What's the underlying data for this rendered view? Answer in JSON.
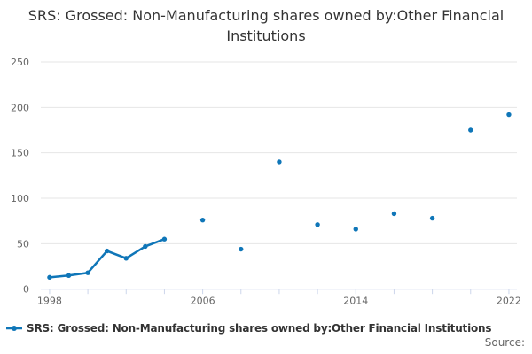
{
  "title": "SRS: Grossed: Non-Manufacturing shares owned by:Other Financial Institutions",
  "legend": {
    "label": "SRS: Grossed: Non-Manufacturing shares owned by:Other Financial Institutions",
    "marker": "line-with-dot-icon"
  },
  "footer": {
    "source_label": "Source:"
  },
  "colors": {
    "series": "#0f76b8",
    "grid": "#e6e6e6",
    "axis": "#ccd6eb",
    "tick_text": "#666666",
    "title_text": "#333333",
    "legend_text": "#333333",
    "source_text": "#666666",
    "background": "#ffffff"
  },
  "chart_data": {
    "type": "line",
    "title": "SRS: Grossed: Non-Manufacturing shares owned by:Other Financial Institutions",
    "xlabel": "",
    "ylabel": "",
    "xlim": [
      1997.54,
      2022.42
    ],
    "ylim": [
      0,
      250
    ],
    "yticks": [
      0,
      50,
      100,
      150,
      200,
      250
    ],
    "xticks": [
      1998,
      2000,
      2002,
      2004,
      2006,
      2008,
      2010,
      2012,
      2014,
      2016,
      2018,
      2020,
      2022
    ],
    "xtick_labels": [
      1998,
      2006,
      2014,
      2022
    ],
    "grid": true,
    "legend_position": "bottom-left",
    "series": [
      {
        "name": "SRS: Grossed: Non-Manufacturing shares owned by:Other Financial Institutions",
        "points": [
          [
            1998,
            13
          ],
          [
            1999,
            15
          ],
          [
            2000,
            18
          ],
          [
            2001,
            42
          ],
          [
            2002,
            34
          ],
          [
            2003,
            47
          ],
          [
            2004,
            55
          ],
          [
            2006,
            76
          ],
          [
            2008,
            44
          ],
          [
            2010,
            140
          ],
          [
            2012,
            71
          ],
          [
            2014,
            66
          ],
          [
            2016,
            83
          ],
          [
            2018,
            78
          ],
          [
            2020,
            175
          ],
          [
            2022,
            192
          ]
        ],
        "note": "years with a 1-year step are drawn connected; 2-year gaps are isolated markers"
      }
    ]
  }
}
